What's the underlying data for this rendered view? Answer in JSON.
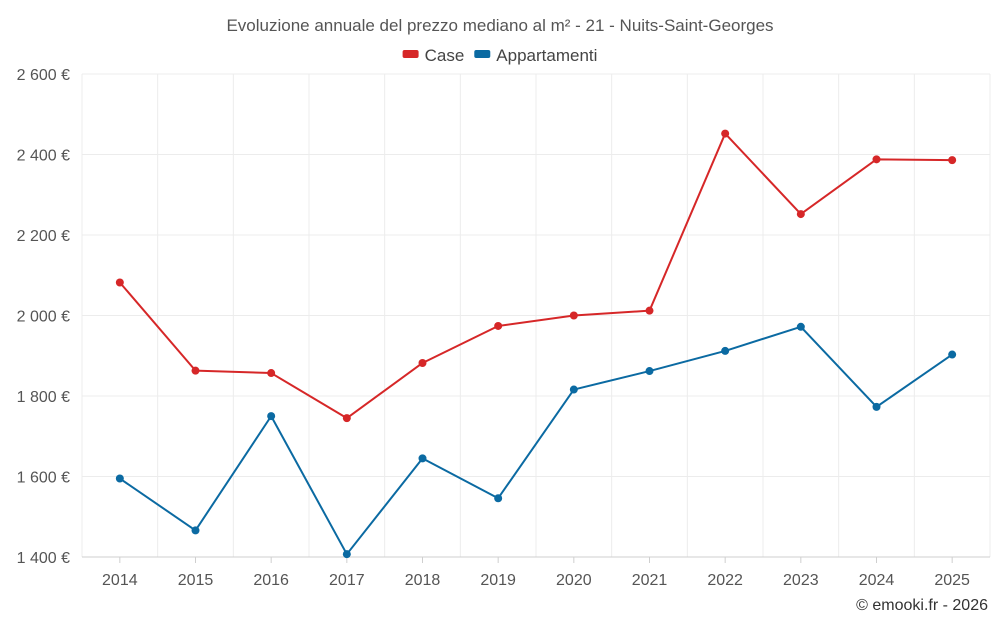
{
  "chart_data": {
    "type": "line",
    "title": "Evoluzione annuale del prezzo mediano al m² - 21 - Nuits-Saint-Georges",
    "categories": [
      "2014",
      "2015",
      "2016",
      "2017",
      "2018",
      "2019",
      "2020",
      "2021",
      "2022",
      "2023",
      "2024",
      "2025"
    ],
    "series": [
      {
        "name": "Case",
        "color": "#d62728",
        "values": [
          2082,
          1863,
          1857,
          1745,
          1882,
          1974,
          2000,
          2012,
          2452,
          2252,
          2388,
          2386
        ]
      },
      {
        "name": "Appartamenti",
        "color": "#0b6aa2",
        "values": [
          1595,
          1466,
          1750,
          1407,
          1645,
          1546,
          1816,
          1862,
          1912,
          1972,
          1773,
          1903
        ]
      }
    ],
    "ylim": [
      1400,
      2600
    ],
    "yticks": [
      1400,
      1600,
      1800,
      2000,
      2200,
      2400,
      2600
    ],
    "ytick_labels": [
      "1 400 €",
      "1 600 €",
      "1 800 €",
      "2 000 €",
      "2 200 €",
      "2 400 €",
      "2 600 €"
    ],
    "xlabel": "",
    "ylabel": "",
    "grid": true,
    "legend": "top-center"
  },
  "credit": "© emooki.fr - 2026"
}
